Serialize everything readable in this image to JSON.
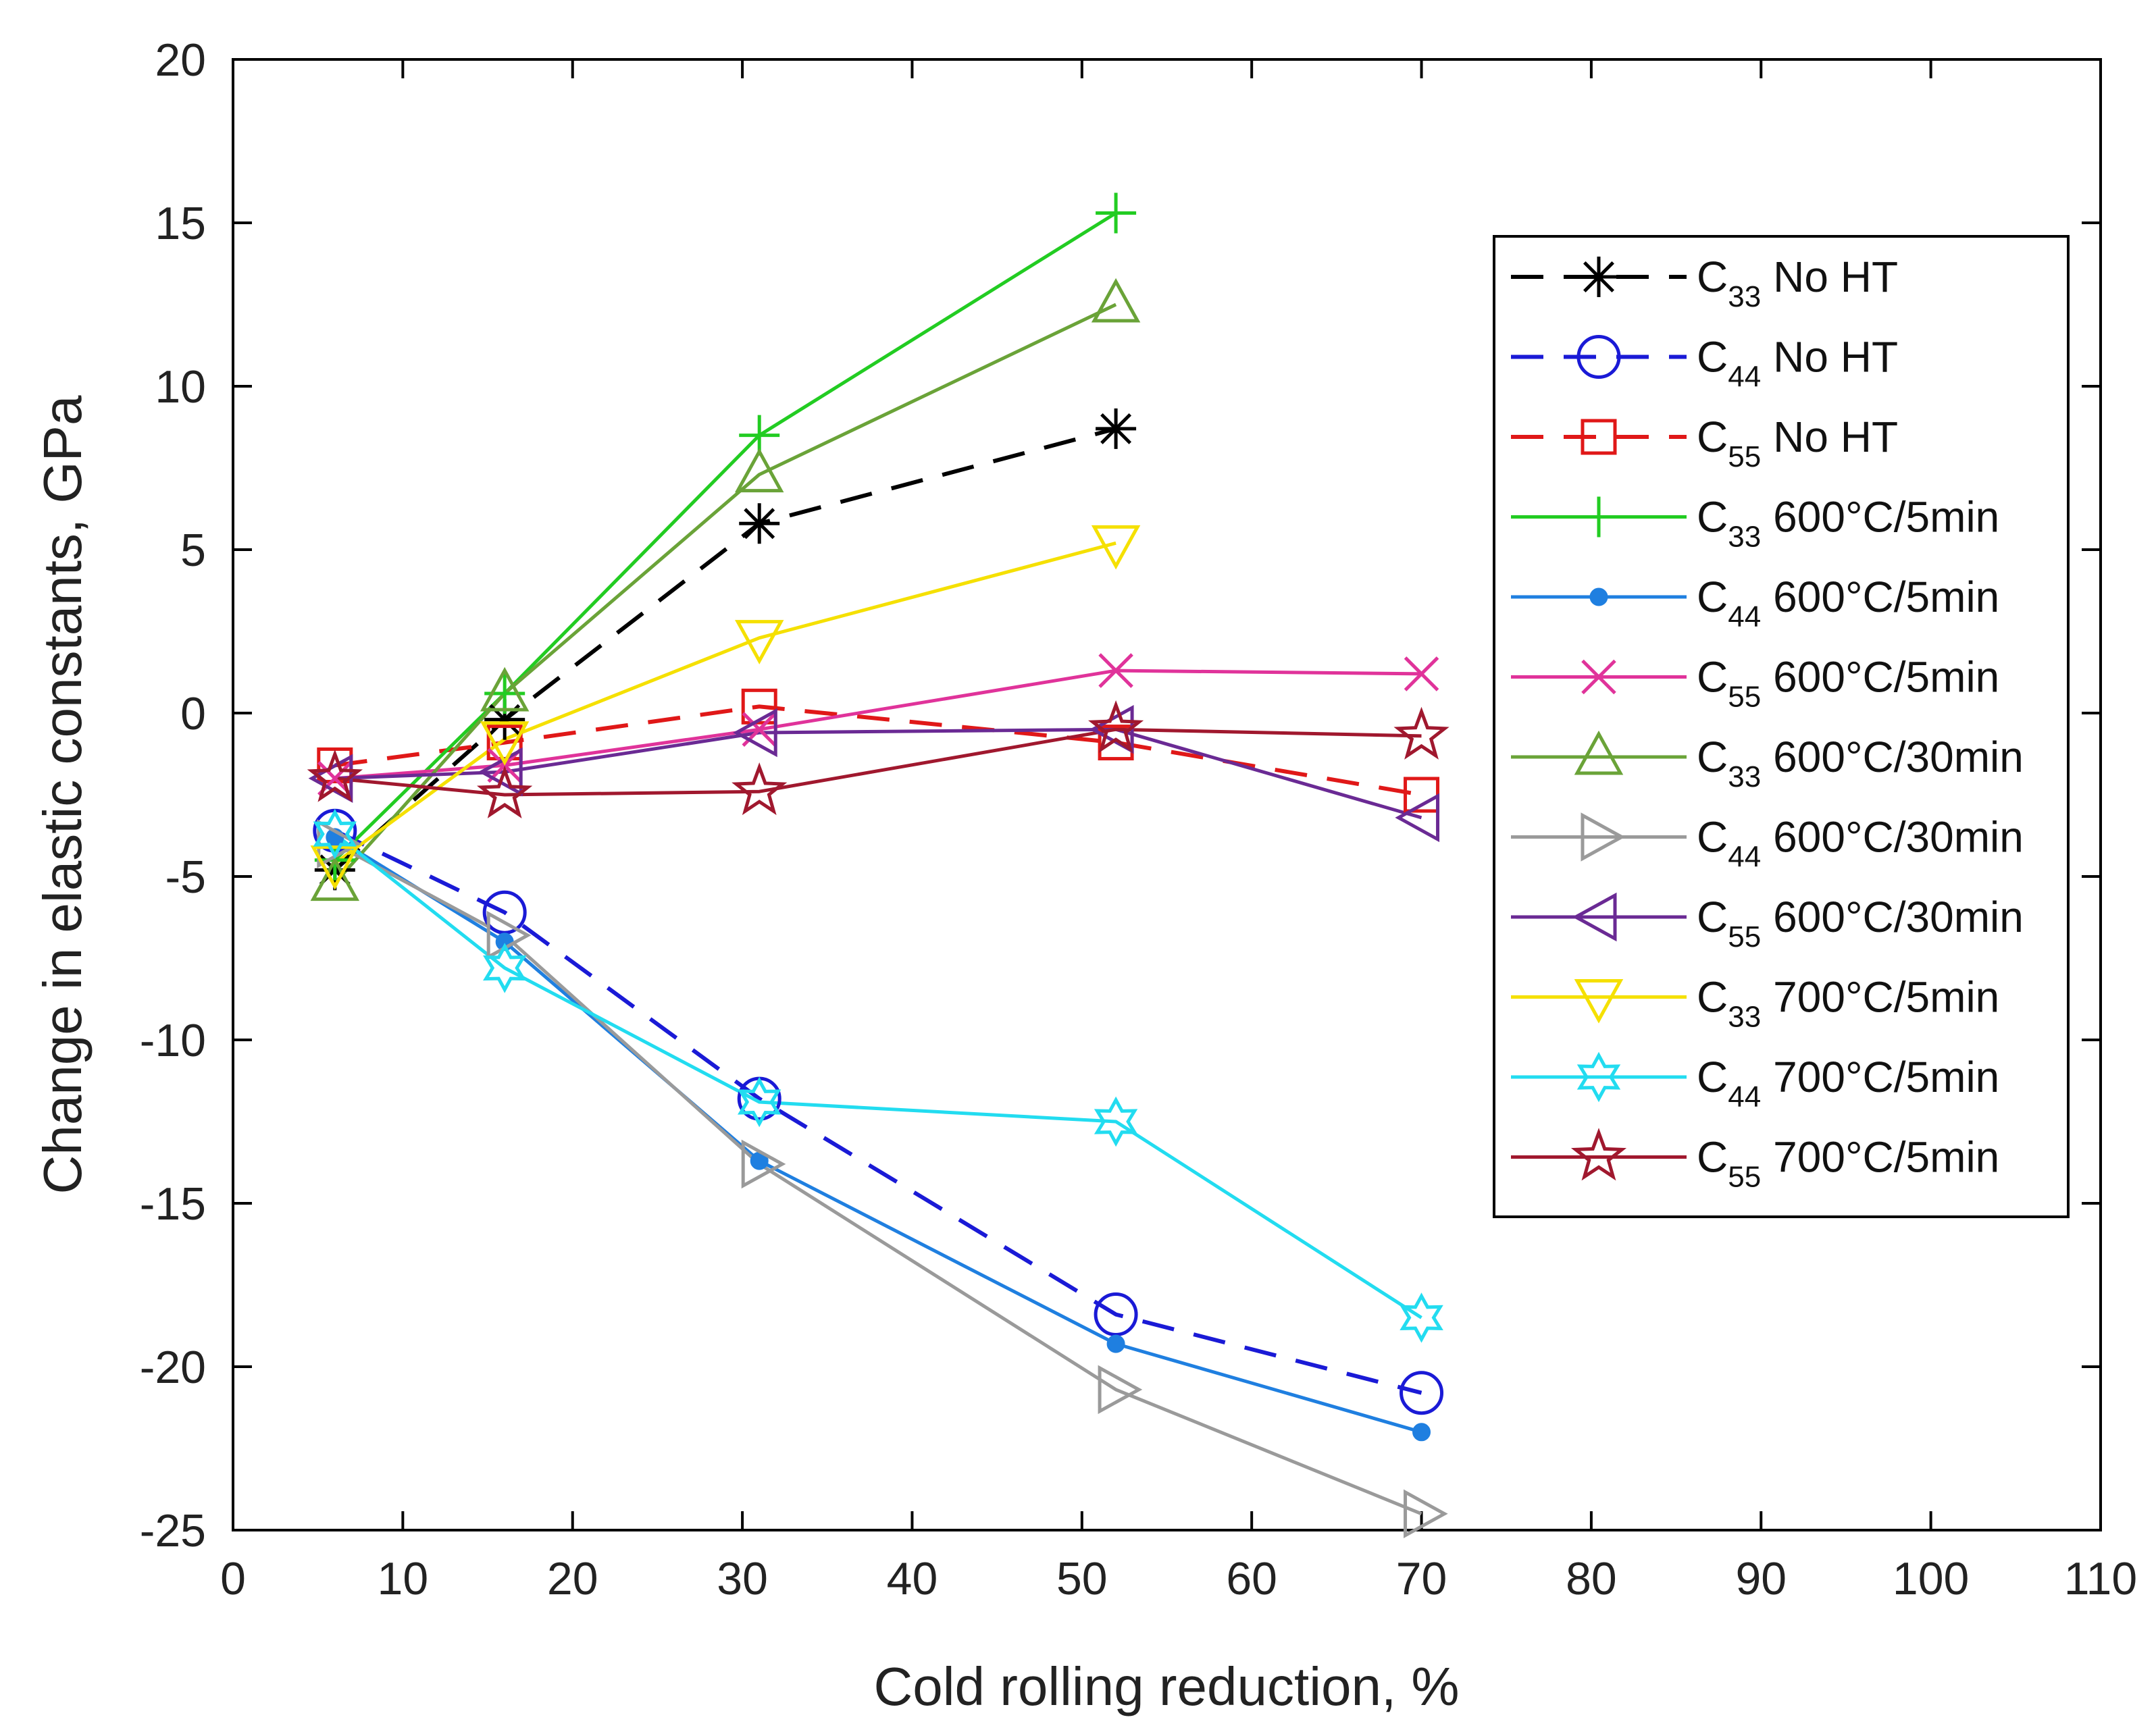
{
  "chart_data": {
    "type": "line",
    "title": "",
    "xlabel": "Cold rolling reduction, %",
    "ylabel": "Change in elastic constants, GPa",
    "xlim": [
      0,
      110
    ],
    "ylim": [
      -25,
      20
    ],
    "xticks": [
      0,
      10,
      20,
      30,
      40,
      50,
      60,
      70,
      80,
      90,
      100,
      110
    ],
    "yticks": [
      20,
      15,
      10,
      5,
      0,
      -5,
      -10,
      -15,
      -20,
      -25
    ],
    "grid": false,
    "legend_position": "top-right",
    "series": [
      {
        "name": "C33 No HT",
        "constant": "C",
        "sub": "33",
        "condition": "No HT",
        "color": "#000000",
        "dash": "dashed",
        "marker": "asterisk",
        "x": [
          6,
          16,
          31,
          52
        ],
        "y": [
          -4.8,
          -0.2,
          5.8,
          8.7
        ]
      },
      {
        "name": "C44 No HT",
        "constant": "C",
        "sub": "44",
        "condition": "No HT",
        "color": "#1a1ad6",
        "dash": "dashed",
        "marker": "circle",
        "x": [
          6,
          16,
          31,
          52,
          70
        ],
        "y": [
          -3.6,
          -6.1,
          -11.8,
          -18.4,
          -20.8
        ]
      },
      {
        "name": "C55 No HT",
        "constant": "C",
        "sub": "55",
        "condition": "No HT",
        "color": "#e01818",
        "dash": "dashed",
        "marker": "square",
        "x": [
          6,
          16,
          31,
          52,
          70
        ],
        "y": [
          -1.6,
          -0.9,
          0.2,
          -0.9,
          -2.5
        ]
      },
      {
        "name": "C33 600°C/5min",
        "constant": "C",
        "sub": "33",
        "condition": "600°C/5min",
        "color": "#22cc22",
        "dash": "solid",
        "marker": "plus",
        "x": [
          6,
          16,
          31,
          52
        ],
        "y": [
          -4.5,
          0.6,
          8.5,
          15.3
        ]
      },
      {
        "name": "C44 600°C/5min",
        "constant": "C",
        "sub": "44",
        "condition": "600°C/5min",
        "color": "#1f7fe0",
        "dash": "solid",
        "marker": "dot",
        "x": [
          6,
          16,
          31,
          52,
          70
        ],
        "y": [
          -3.8,
          -7.0,
          -13.7,
          -19.3,
          -22.0
        ]
      },
      {
        "name": "C55 600°C/5min",
        "constant": "C",
        "sub": "55",
        "condition": "600°C/5min",
        "color": "#e0339a",
        "dash": "solid",
        "marker": "x",
        "x": [
          6,
          16,
          31,
          52,
          70
        ],
        "y": [
          -2.0,
          -1.6,
          -0.5,
          1.3,
          1.2
        ]
      },
      {
        "name": "C33 600°C/30min",
        "constant": "C",
        "sub": "33",
        "condition": "600°C/30min",
        "color": "#6aa338",
        "dash": "solid",
        "marker": "triangle-up",
        "x": [
          6,
          16,
          31,
          52
        ],
        "y": [
          -5.2,
          0.6,
          7.3,
          12.5
        ]
      },
      {
        "name": "C44 600°C/30min",
        "constant": "C",
        "sub": "44",
        "condition": "600°C/30min",
        "color": "#9a9a9a",
        "dash": "solid",
        "marker": "triangle-right",
        "x": [
          6,
          16,
          31,
          52,
          70
        ],
        "y": [
          -4.0,
          -6.8,
          -13.8,
          -20.7,
          -24.5
        ]
      },
      {
        "name": "C55 600°C/30min",
        "constant": "C",
        "sub": "55",
        "condition": "600°C/30min",
        "color": "#6a2a94",
        "dash": "solid",
        "marker": "triangle-left",
        "x": [
          6,
          16,
          31,
          52,
          70
        ],
        "y": [
          -2.0,
          -1.8,
          -0.6,
          -0.5,
          -3.2
        ]
      },
      {
        "name": "C33 700°C/5min",
        "constant": "C",
        "sub": "33",
        "condition": "700°C/5min",
        "color": "#f5e000",
        "dash": "solid",
        "marker": "triangle-down",
        "x": [
          6,
          16,
          31,
          52
        ],
        "y": [
          -4.6,
          -0.8,
          2.3,
          5.2
        ]
      },
      {
        "name": "C44 700°C/5min",
        "constant": "C",
        "sub": "44",
        "condition": "700°C/5min",
        "color": "#22dcf0",
        "dash": "solid",
        "marker": "hexagram",
        "x": [
          6,
          16,
          31,
          52,
          70
        ],
        "y": [
          -3.7,
          -7.8,
          -11.9,
          -12.5,
          -18.5
        ]
      },
      {
        "name": "C55 700°C/5min",
        "constant": "C",
        "sub": "55",
        "condition": "700°C/5min",
        "color": "#a0182e",
        "dash": "solid",
        "marker": "pentagram",
        "x": [
          6,
          16,
          31,
          52,
          70
        ],
        "y": [
          -2.0,
          -2.5,
          -2.4,
          -0.5,
          -0.7
        ]
      }
    ]
  }
}
